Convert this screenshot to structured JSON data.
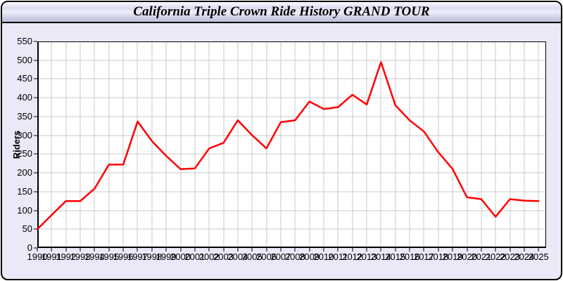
{
  "window": {
    "title": "California Triple Crown Ride History GRAND TOUR"
  },
  "chart_data": {
    "type": "line",
    "title": "California Triple Crown Ride History GRAND TOUR",
    "xlabel": "",
    "ylabel": "Riders",
    "ylim": [
      0,
      550
    ],
    "yticks": [
      0,
      50,
      100,
      150,
      200,
      250,
      300,
      350,
      400,
      450,
      500,
      550
    ],
    "grid": true,
    "legend": "none",
    "categories": [
      "1990",
      "1991",
      "1992",
      "1993",
      "1994",
      "1995",
      "1996",
      "1997",
      "1998",
      "1999",
      "2000",
      "2001",
      "2002",
      "2003",
      "2004",
      "2005",
      "2006",
      "2007",
      "2008",
      "2009",
      "2010",
      "2011",
      "2012",
      "2013",
      "2014",
      "2015",
      "2016",
      "2017",
      "2018",
      "2019",
      "2020",
      "2021",
      "2022",
      "2023",
      "2024",
      "2025"
    ],
    "series": [
      {
        "name": "Riders",
        "color": "#ff0000",
        "values": [
          50,
          88,
          125,
          125,
          158,
          222,
          222,
          337,
          285,
          245,
          210,
          212,
          265,
          280,
          340,
          300,
          265,
          335,
          340,
          390,
          370,
          375,
          408,
          382,
          495,
          380,
          340,
          310,
          255,
          210,
          135,
          130,
          83,
          130,
          126,
          125
        ]
      }
    ]
  },
  "colors": {
    "line": "#ff0000",
    "plot_background": "#ffffff",
    "gridline": "#c9c9c9",
    "axis": "#000000",
    "body_background": "#e9e9f8",
    "window_border": "#000000"
  }
}
